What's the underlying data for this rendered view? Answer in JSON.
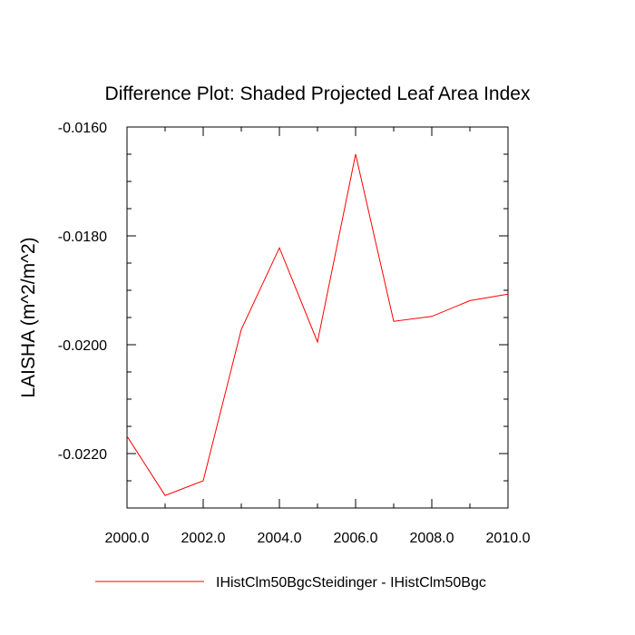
{
  "chart_data": {
    "type": "line",
    "title": "Difference Plot: Shaded Projected Leaf Area Index",
    "ylabel": "LAISHA  (m^2/m^2)",
    "xlabel": "",
    "xlim": [
      2000.0,
      2010.0
    ],
    "ylim": [
      -0.023,
      -0.016
    ],
    "xticks": [
      2000.0,
      2002.0,
      2004.0,
      2006.0,
      2008.0,
      2010.0
    ],
    "xtick_labels": [
      "2000.0",
      "2002.0",
      "2004.0",
      "2006.0",
      "2008.0",
      "2010.0"
    ],
    "yticks": [
      -0.016,
      -0.018,
      -0.02,
      -0.022
    ],
    "ytick_labels": [
      "-0.0160",
      "-0.0180",
      "-0.0200",
      "-0.0220"
    ],
    "grid": false,
    "legend_position": "bottom",
    "series": [
      {
        "name": "IHistClm50BgcSteidinger - IHistClm50Bgc",
        "color": "#ff0000",
        "x": [
          2000,
          2001,
          2002,
          2003,
          2004,
          2005,
          2006,
          2007,
          2008,
          2009,
          2010
        ],
        "y": [
          -0.02168,
          -0.02277,
          -0.0225,
          -0.01972,
          -0.01822,
          -0.01995,
          -0.0165,
          -0.01957,
          -0.01948,
          -0.01919,
          -0.01907
        ]
      }
    ]
  }
}
